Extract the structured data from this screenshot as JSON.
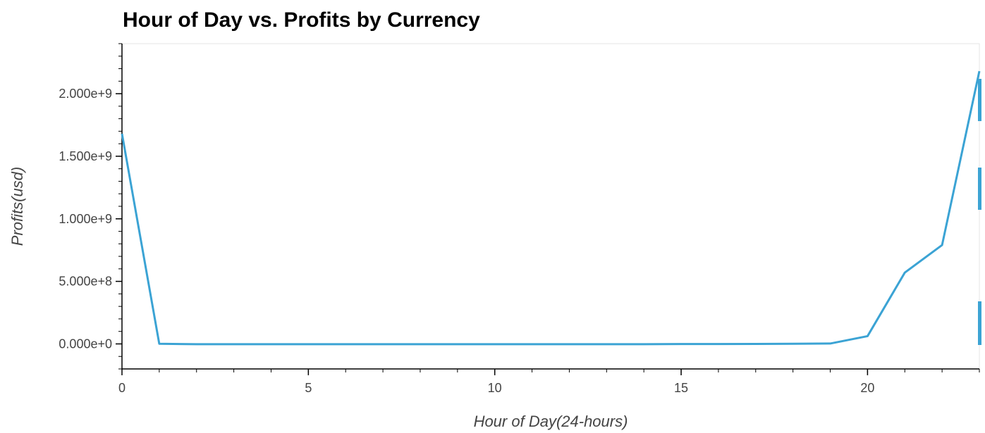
{
  "chart_data": {
    "type": "line",
    "title": "Hour of Day vs. Profits by Currency",
    "xlabel": "Hour of Day(24-hours)",
    "ylabel": "Profits(usd)",
    "xlim": [
      0,
      23
    ],
    "ylim": [
      -200000000,
      2400000000
    ],
    "x_ticks": [
      0,
      5,
      10,
      15,
      20
    ],
    "x_tick_labels": [
      "0",
      "5",
      "10",
      "15",
      "20"
    ],
    "y_ticks": [
      0,
      500000000,
      1000000000,
      1500000000,
      2000000000
    ],
    "y_tick_labels": [
      "0.000e+0",
      "5.000e+8",
      "1.000e+9",
      "1.500e+9",
      "2.000e+9"
    ],
    "grid": false,
    "series": [
      {
        "color": "#3ba3d4",
        "x": [
          0,
          1,
          2,
          3,
          4,
          5,
          6,
          7,
          8,
          9,
          10,
          11,
          12,
          13,
          14,
          15,
          16,
          17,
          18,
          19,
          20,
          21,
          22,
          23
        ],
        "y": [
          1680000000,
          1000000,
          -2000000,
          -2000000,
          -2000000,
          -2000000,
          -2000000,
          -2000000,
          -2000000,
          -2000000,
          -2000000,
          -2000000,
          -2000000,
          -2000000,
          -2000000,
          -1000000,
          -1000000,
          0,
          1000000,
          3000000,
          62000000,
          570000000,
          790000000,
          2180000000
        ]
      }
    ]
  },
  "toolbar": {
    "accent_color": "#3ba3d4"
  }
}
